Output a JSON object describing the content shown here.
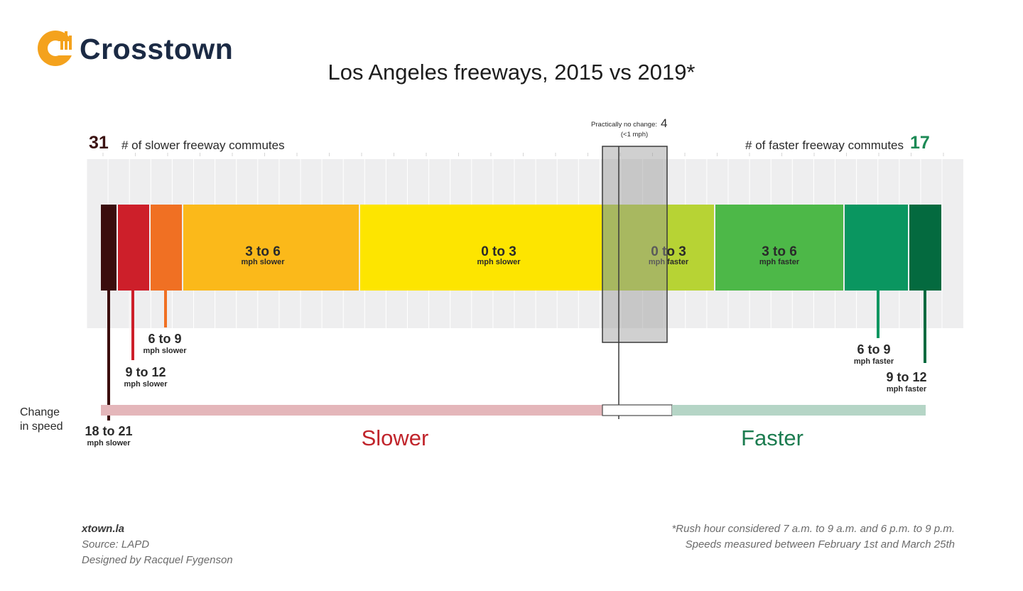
{
  "brand": {
    "name": "Crosstown",
    "logo_icon": "crosstown-logo-icon",
    "orange": "#f4a21d"
  },
  "chart_data": {
    "type": "bar",
    "title": "Los Angeles freeways, 2015 vs 2019*",
    "axis_label": "Change\nin speed",
    "direction_labels": {
      "slower": "Slower",
      "faster": "Faster"
    },
    "summary": {
      "slower_count": 31,
      "slower_label": "# of slower freeway commutes",
      "faster_count": 17,
      "faster_label": "# of faster freeway commutes",
      "no_change_label": "Practically no change:",
      "no_change_count": 4,
      "no_change_note": "(<1 mph)"
    },
    "categories": [
      {
        "range": "18 to 21",
        "unit": "mph slower",
        "direction": "slower",
        "color": "#3b0d0d"
      },
      {
        "range": "9 to 12",
        "unit": "mph slower",
        "direction": "slower",
        "color": "#cd1f2a"
      },
      {
        "range": "6 to 9",
        "unit": "mph slower",
        "direction": "slower",
        "color": "#f07023"
      },
      {
        "range": "3 to 6",
        "unit": "mph slower",
        "direction": "slower",
        "color": "#fbb91a"
      },
      {
        "range": "0 to 3",
        "unit": "mph slower",
        "direction": "slower",
        "color": "#fde500"
      },
      {
        "range": "0 to 3",
        "unit": "mph faster",
        "direction": "faster",
        "color": "#b7d334"
      },
      {
        "range": "3 to 6",
        "unit": "mph faster",
        "direction": "faster",
        "color": "#4db848"
      },
      {
        "range": "6 to 9",
        "unit": "mph faster",
        "direction": "faster",
        "color": "#0a9660"
      },
      {
        "range": "9 to 12",
        "unit": "mph faster",
        "direction": "faster",
        "color": "#046a3f"
      }
    ],
    "colors": {
      "slower_text": "#c0242b",
      "faster_text": "#1c7c50",
      "slower_count": "#3b1212",
      "faster_count": "#1c8a55"
    }
  },
  "footer": {
    "site": "xtown.la",
    "source": "Source: LAPD",
    "designer": "Designed by Racquel Fygenson",
    "note1": "*Rush hour considered 7 a.m. to 9 a.m. and 6 p.m. to 9 p.m.",
    "note2": "Speeds measured between February 1st and March 25th"
  }
}
